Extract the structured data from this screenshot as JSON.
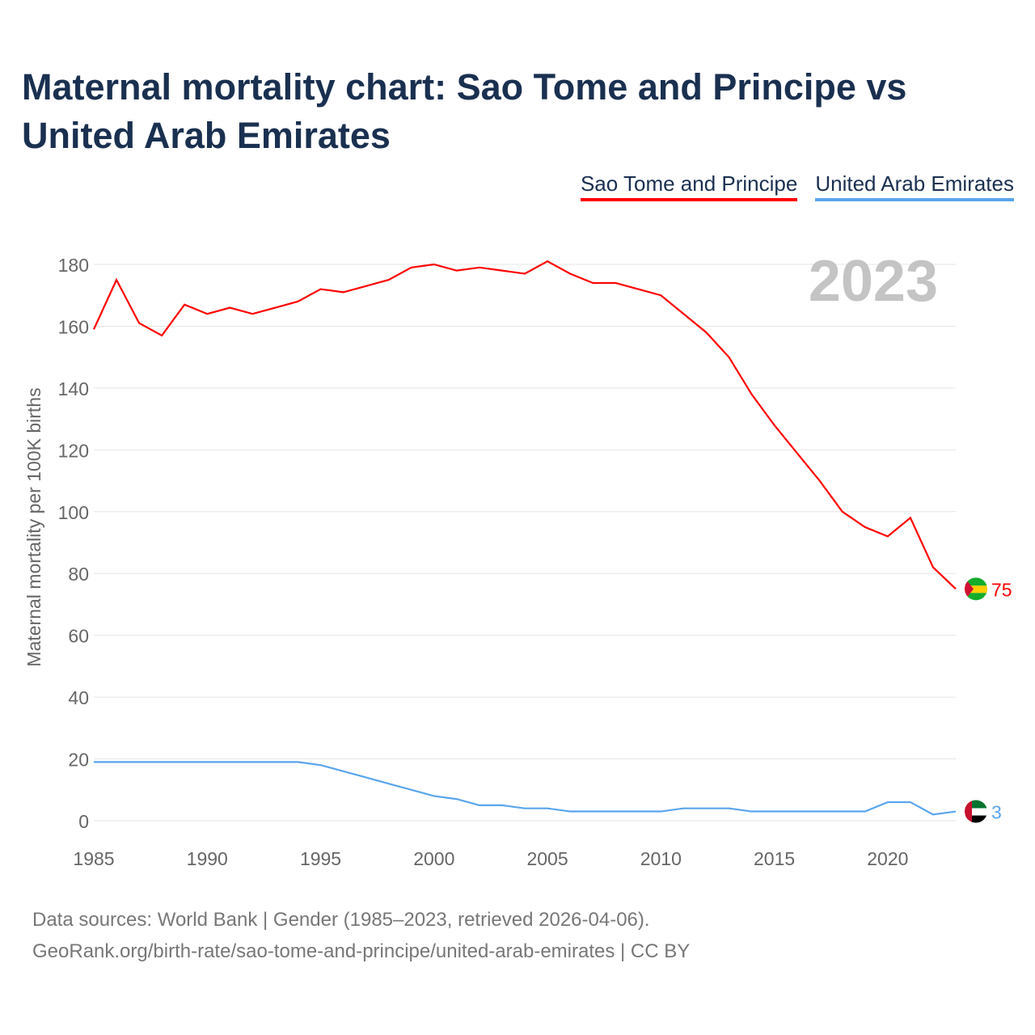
{
  "title": "Maternal mortality chart: Sao Tome and Principe vs United Arab Emirates",
  "footer": {
    "line1": "Data sources: World Bank | Gender (1985–2023, retrieved 2026-04-06).",
    "line2": "GeoRank.org/birth-rate/sao-tome-and-principe/united-arab-emirates | CC BY"
  },
  "chart_data": {
    "type": "line",
    "title": "Maternal mortality chart: Sao Tome and Principe vs United Arab Emirates",
    "ylabel": "Maternal mortality per 100K births",
    "xlabel": "",
    "year_label": "2023",
    "xlim": [
      1985,
      2023
    ],
    "ylim": [
      0,
      180
    ],
    "xticks": [
      1985,
      1990,
      1995,
      2000,
      2005,
      2010,
      2015,
      2020
    ],
    "yticks": [
      0,
      20,
      40,
      60,
      80,
      100,
      120,
      140,
      160,
      180
    ],
    "grid": true,
    "legend_position": "top-right",
    "x": [
      1985,
      1986,
      1987,
      1988,
      1989,
      1990,
      1991,
      1992,
      1993,
      1994,
      1995,
      1996,
      1997,
      1998,
      1999,
      2000,
      2001,
      2002,
      2003,
      2004,
      2005,
      2006,
      2007,
      2008,
      2009,
      2010,
      2011,
      2012,
      2013,
      2014,
      2015,
      2016,
      2017,
      2018,
      2019,
      2020,
      2021,
      2022,
      2023
    ],
    "series": [
      {
        "name": "Sao Tome and Principe",
        "color": "#ff0000",
        "end_label": "75",
        "values": [
          159,
          175,
          161,
          157,
          167,
          164,
          166,
          164,
          166,
          168,
          172,
          171,
          173,
          175,
          179,
          180,
          178,
          179,
          178,
          177,
          181,
          177,
          174,
          174,
          172,
          170,
          164,
          158,
          150,
          138,
          128,
          119,
          110,
          100,
          95,
          92,
          98,
          82,
          75
        ]
      },
      {
        "name": "United Arab Emirates",
        "color": "#5aa5ec",
        "end_label": "3",
        "values": [
          19,
          19,
          19,
          19,
          19,
          19,
          19,
          19,
          19,
          19,
          18,
          16,
          14,
          12,
          10,
          8,
          7,
          5,
          5,
          4,
          4,
          3,
          3,
          3,
          3,
          3,
          4,
          4,
          4,
          3,
          3,
          3,
          3,
          3,
          3,
          6,
          6,
          2,
          3
        ]
      }
    ]
  }
}
